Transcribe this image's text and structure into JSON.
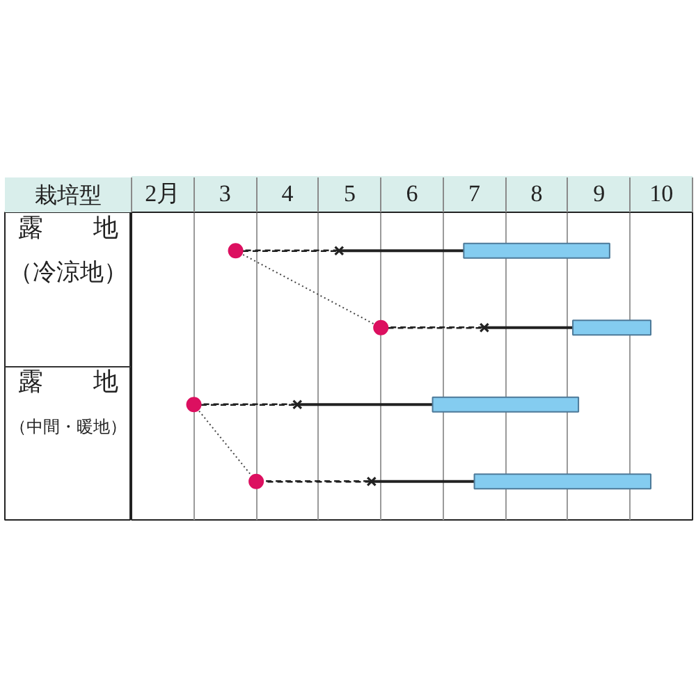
{
  "chart_data": {
    "type": "bar",
    "orientation": "horizontal",
    "ylabel": "栽培型",
    "categories": [
      "露　　地（冷涼地）",
      null,
      "露　　地（中間・暖地）",
      null
    ],
    "xlim": [
      2,
      11
    ],
    "xticks": [
      {
        "value": 2,
        "label": null
      },
      {
        "value": 2.5,
        "label": "2月"
      },
      {
        "value": 3,
        "label": null
      },
      {
        "value": 3.5,
        "label": "3"
      },
      {
        "value": 4,
        "label": null
      },
      {
        "value": 4.5,
        "label": "4"
      },
      {
        "value": 5,
        "label": null
      },
      {
        "value": 5.5,
        "label": "5"
      },
      {
        "value": 6,
        "label": null
      },
      {
        "value": 6.5,
        "label": "6"
      },
      {
        "value": 7,
        "label": null
      },
      {
        "value": 7.5,
        "label": "7"
      },
      {
        "value": 8,
        "label": null
      },
      {
        "value": 8.5,
        "label": "8"
      },
      {
        "value": 9,
        "label": null
      },
      {
        "value": 9.5,
        "label": "9"
      },
      {
        "value": 10,
        "label": null
      },
      {
        "value": 10.5,
        "label": "10"
      },
      {
        "value": 11,
        "label": null
      }
    ],
    "grid": "x",
    "series": [
      {
        "line_style": "dashed",
        "color": "#222222",
        "base": [
          3.67,
          6.0,
          3.0,
          4.0
        ],
        "values": [
          1.66,
          1.66,
          1.66,
          1.85
        ]
      },
      {
        "line_style": "solid",
        "color": "#222222",
        "base": [
          5.33,
          7.66,
          4.66,
          5.85
        ],
        "values": [
          2.0,
          1.42,
          2.17,
          1.65
        ]
      },
      {
        "color": "#84ccf0",
        "base": [
          7.33,
          9.08,
          6.83,
          7.5
        ],
        "values": [
          2.34,
          1.25,
          2.34,
          2.83
        ]
      },
      {
        "type": "line",
        "line_style": "dotted",
        "color": "#444444",
        "values": [
          3.67,
          6.0,
          null,
          null
        ]
      },
      {
        "type": "line",
        "line_style": "dotted",
        "color": "#444444",
        "values": [
          null,
          null,
          3.0,
          4.0
        ]
      },
      {
        "type": "scatter",
        "marker": "cross",
        "color": "#222222",
        "values": [
          5.33,
          7.66,
          4.66,
          5.85
        ]
      },
      {
        "type": "scatter",
        "marker": "circle",
        "color": "#dc1060",
        "values": [
          3.67,
          6.0,
          3.0,
          4.0
        ]
      }
    ]
  }
}
